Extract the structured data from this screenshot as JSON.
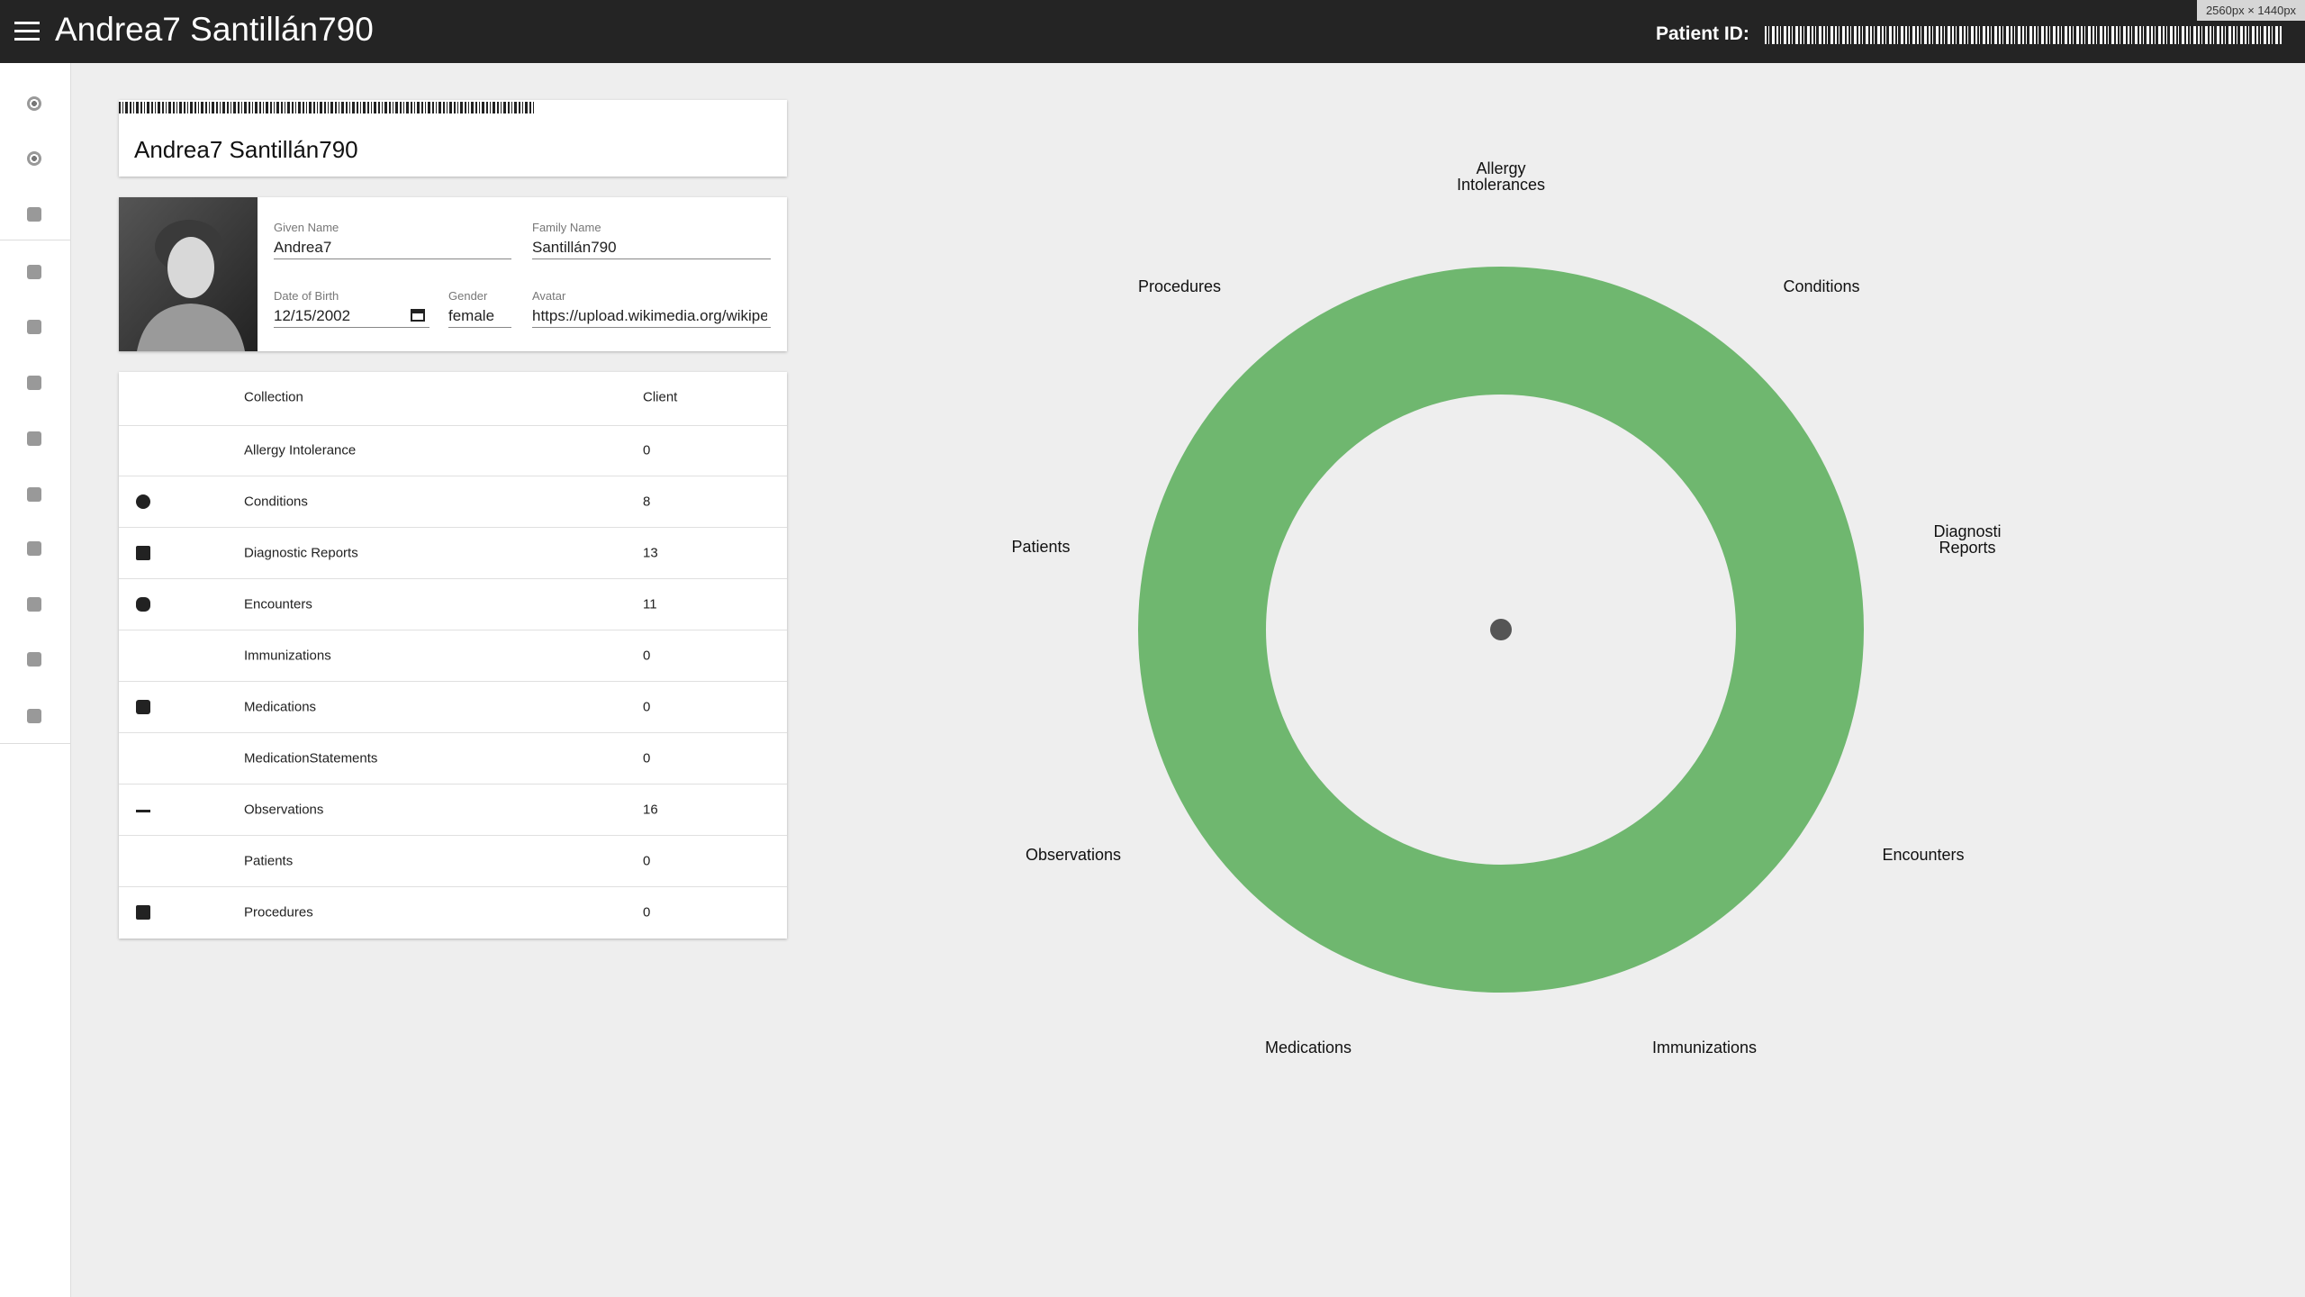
{
  "header": {
    "title": "Andrea7 Santillán790",
    "patient_id_label": "Patient ID:",
    "viewport_badge": "2560px × 1440px"
  },
  "name_card": {
    "name": "Andrea7 Santillán790"
  },
  "profile": {
    "fields": [
      {
        "label": "Given Name",
        "value": "Andrea7"
      },
      {
        "label": "Family Name",
        "value": "Santillán790"
      },
      {
        "label": "Date of Birth",
        "value": "12/15/2002"
      },
      {
        "label": "Gender",
        "value": "female"
      },
      {
        "label": "Avatar",
        "value": "https://upload.wikimedia.org/wikipe"
      }
    ]
  },
  "table": {
    "headers": [
      "Collection",
      "Client"
    ],
    "rows": [
      [
        "Allergy Intolerance",
        "0"
      ],
      [
        "Conditions",
        "8"
      ],
      [
        "Diagnostic Reports",
        "13"
      ],
      [
        "Encounters",
        "11"
      ],
      [
        "Immunizations",
        "0"
      ],
      [
        "Medications",
        "0"
      ],
      [
        "MedicationStatements",
        "0"
      ],
      [
        "Observations",
        "16"
      ],
      [
        "Patients",
        "0"
      ],
      [
        "Procedures",
        "0"
      ]
    ]
  },
  "chart": {
    "labels": [
      "Allergy Intolerances",
      "Conditions",
      "Diagnosti Reports",
      "Encounters",
      "Immunizations",
      "Medications",
      "Observations",
      "Patients",
      "Procedures"
    ]
  }
}
